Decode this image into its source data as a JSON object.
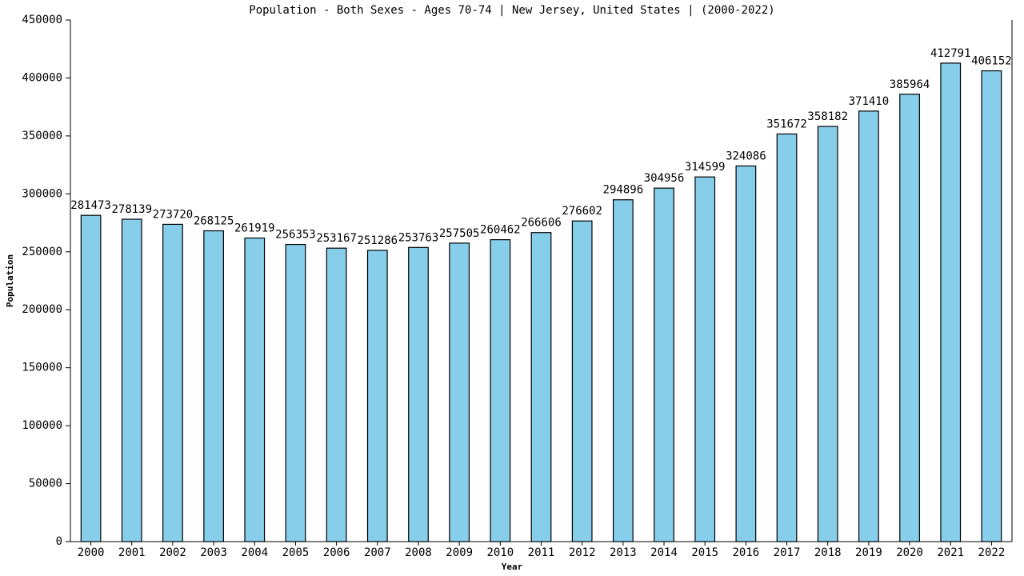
{
  "chart_data": {
    "type": "bar",
    "title": "Population - Both Sexes - Ages 70-74 | New Jersey, United States |  (2000-2022)",
    "x_label": "Year",
    "y_label": "Population",
    "categories": [
      "2000",
      "2001",
      "2002",
      "2003",
      "2004",
      "2005",
      "2006",
      "2007",
      "2008",
      "2009",
      "2010",
      "2011",
      "2012",
      "2013",
      "2014",
      "2015",
      "2016",
      "2017",
      "2018",
      "2019",
      "2020",
      "2021",
      "2022"
    ],
    "values": [
      281473,
      278139,
      273720,
      268125,
      261919,
      256353,
      253167,
      251286,
      253763,
      257505,
      260462,
      266606,
      276602,
      294896,
      304956,
      314599,
      324086,
      351672,
      358182,
      371410,
      385964,
      412791,
      406152
    ],
    "color": "#87ceeb",
    "ylim": [
      0,
      450000
    ],
    "yticks": [
      0,
      50000,
      100000,
      150000,
      200000,
      250000,
      300000,
      350000,
      400000,
      450000
    ],
    "grid": false
  }
}
